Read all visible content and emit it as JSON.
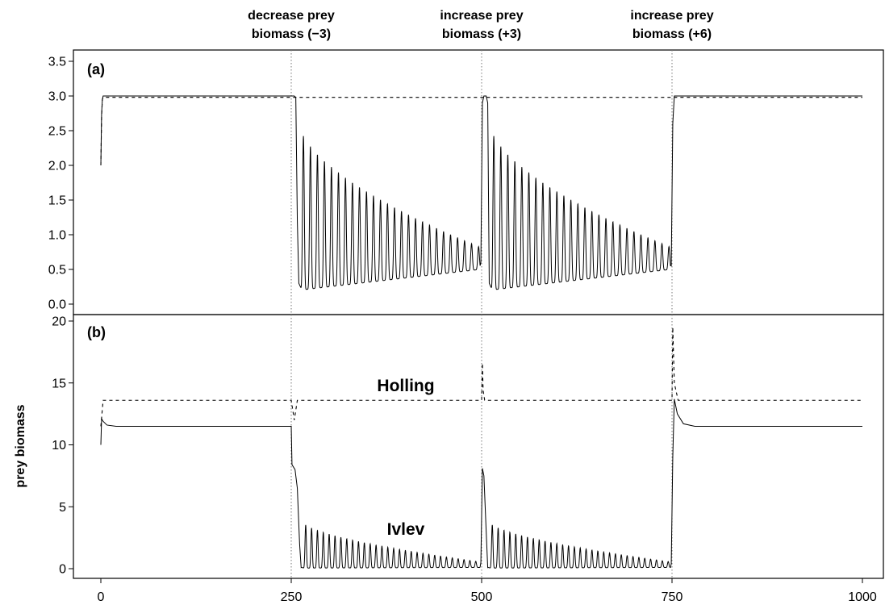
{
  "chart_data": [
    {
      "panel": "(a)",
      "type": "line",
      "xlim": [
        0,
        1000
      ],
      "ylim": [
        0,
        3.5
      ],
      "yticks": [
        "0.0",
        "0.5",
        "1.0",
        "1.5",
        "2.0",
        "2.5",
        "3.0",
        "3.5"
      ],
      "xticks": [
        "0",
        "250",
        "500",
        "750",
        "1000"
      ],
      "series": [
        {
          "style": "dashed",
          "x": [
            0,
            1,
            2,
            3,
            250,
            252,
            254,
            256,
            258,
            260,
            499,
            500,
            501,
            502,
            750,
            752,
            1000
          ],
          "y": [
            2.0,
            2.7,
            2.95,
            2.98,
            2.98,
            2.98,
            2.98,
            2.98,
            2.98,
            2.98,
            2.98,
            2.98,
            2.98,
            2.98,
            2.98,
            2.98,
            2.98
          ]
        },
        {
          "style": "solid",
          "start": 2.0,
          "equilibrium": 3.0,
          "oscillation": {
            "period": 9.2,
            "first_peak": 2.62,
            "last_peak": 0.82,
            "first_trough": 0.2,
            "last_trough": 0.5
          }
        }
      ]
    },
    {
      "panel": "(b)",
      "type": "line",
      "xlim": [
        0,
        1000
      ],
      "ylim": [
        0,
        20
      ],
      "yticks": [
        "0",
        "5",
        "10",
        "15",
        "20"
      ],
      "xticks": [
        "0",
        "250",
        "500",
        "750",
        "1000"
      ],
      "series": [
        {
          "name": "Holling",
          "style": "dashed",
          "x": [
            0,
            3,
            250,
            254,
            258,
            500,
            501,
            502,
            504,
            750,
            751,
            753,
            758,
            1000
          ],
          "y": [
            11.5,
            13.6,
            13.6,
            12.0,
            13.6,
            13.6,
            16.6,
            14.4,
            13.6,
            13.6,
            19.5,
            15.0,
            13.6,
            13.6
          ]
        },
        {
          "name": "Ivlev",
          "style": "solid",
          "start": 10.0,
          "equilibrium": 11.5,
          "peak_after_start": 12.1,
          "post_drop_plateau": 8.4,
          "first_osc_peak": 3.9,
          "last_osc_peak": 0.55,
          "rebound_peak_500": 8.1,
          "rebound_peak_750": 13.7
        }
      ]
    }
  ],
  "annotations": [
    {
      "x": 250,
      "line1": "decrease prey",
      "line2": "biomass (−3)"
    },
    {
      "x": 500,
      "line1": "increase prey",
      "line2": "biomass (+3)"
    },
    {
      "x": 750,
      "line1": "increase prey",
      "line2": "biomass (+6)"
    }
  ],
  "ylabel": "prey biomass"
}
